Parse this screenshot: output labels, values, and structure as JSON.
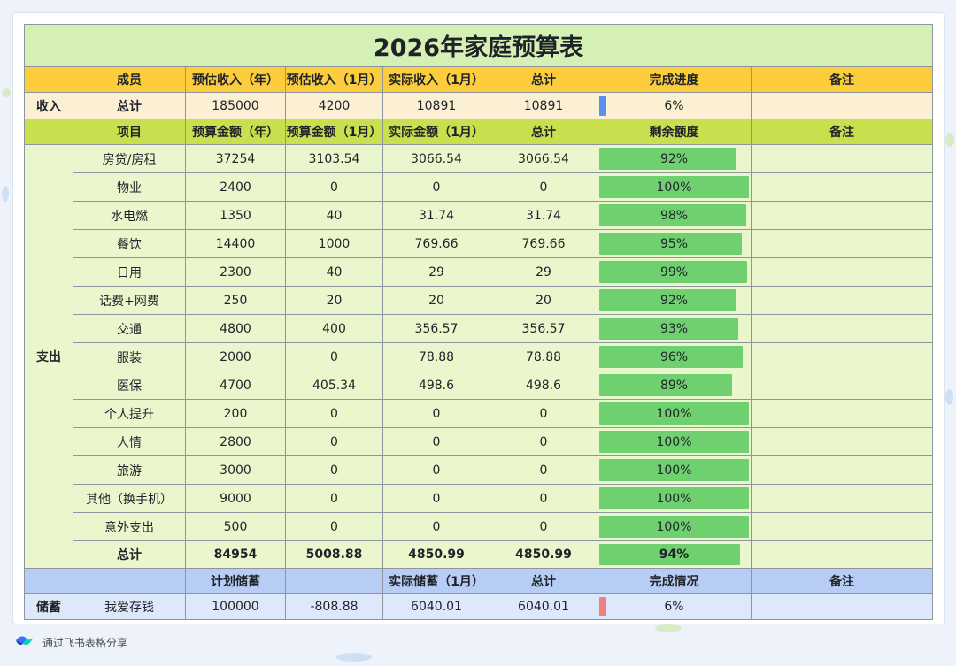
{
  "title": "2026年家庭预算表",
  "income_header": [
    "",
    "成员",
    "预估收入（年）",
    "预估收入（1月）",
    "实际收入（1月）",
    "总计",
    "完成进度",
    "备注"
  ],
  "income_row": {
    "section": "收入",
    "name": "总计",
    "year": "185000",
    "month": "4200",
    "actual": "10891",
    "total": "10891",
    "progress": "6%",
    "progress_value": 6,
    "note": ""
  },
  "expense_header": [
    "",
    "项目",
    "预算金额（年）",
    "预算金额（1月）",
    "实际金额（1月）",
    "总计",
    "剩余额度",
    "备注"
  ],
  "expense_section": "支出",
  "expense_rows": [
    {
      "item": "房贷/房租",
      "year": "37254",
      "month": "3103.54",
      "actual": "3066.54",
      "total": "3066.54",
      "remain": "92%",
      "remain_value": 92
    },
    {
      "item": "物业",
      "year": "2400",
      "month": "0",
      "actual": "0",
      "total": "0",
      "remain": "100%",
      "remain_value": 100
    },
    {
      "item": "水电燃",
      "year": "1350",
      "month": "40",
      "actual": "31.74",
      "total": "31.74",
      "remain": "98%",
      "remain_value": 98
    },
    {
      "item": "餐饮",
      "year": "14400",
      "month": "1000",
      "actual": "769.66",
      "total": "769.66",
      "remain": "95%",
      "remain_value": 95
    },
    {
      "item": "日用",
      "year": "2300",
      "month": "40",
      "actual": "29",
      "total": "29",
      "remain": "99%",
      "remain_value": 99
    },
    {
      "item": "话费+网费",
      "year": "250",
      "month": "20",
      "actual": "20",
      "total": "20",
      "remain": "92%",
      "remain_value": 92
    },
    {
      "item": "交通",
      "year": "4800",
      "month": "400",
      "actual": "356.57",
      "total": "356.57",
      "remain": "93%",
      "remain_value": 93
    },
    {
      "item": "服装",
      "year": "2000",
      "month": "0",
      "actual": "78.88",
      "total": "78.88",
      "remain": "96%",
      "remain_value": 96
    },
    {
      "item": "医保",
      "year": "4700",
      "month": "405.34",
      "actual": "498.6",
      "total": "498.6",
      "remain": "89%",
      "remain_value": 89
    },
    {
      "item": "个人提升",
      "year": "200",
      "month": "0",
      "actual": "0",
      "total": "0",
      "remain": "100%",
      "remain_value": 100
    },
    {
      "item": "人情",
      "year": "2800",
      "month": "0",
      "actual": "0",
      "total": "0",
      "remain": "100%",
      "remain_value": 100
    },
    {
      "item": "旅游",
      "year": "3000",
      "month": "0",
      "actual": "0",
      "total": "0",
      "remain": "100%",
      "remain_value": 100
    },
    {
      "item": "其他（换手机）",
      "year": "9000",
      "month": "0",
      "actual": "0",
      "total": "0",
      "remain": "100%",
      "remain_value": 100
    },
    {
      "item": "意外支出",
      "year": "500",
      "month": "0",
      "actual": "0",
      "total": "0",
      "remain": "100%",
      "remain_value": 100
    }
  ],
  "expense_total": {
    "item": "总计",
    "year": "84954",
    "month": "5008.88",
    "actual": "4850.99",
    "total": "4850.99",
    "remain": "94%",
    "remain_value": 94
  },
  "savings_header": [
    "",
    "",
    "计划储蓄",
    "",
    "实际储蓄（1月）",
    "总计",
    "完成情况",
    "备注"
  ],
  "savings_row": {
    "section": "储蓄",
    "name": "我爱存钱",
    "plan": "100000",
    "diff": "-808.88",
    "actual": "6040.01",
    "total": "6040.01",
    "progress": "6%",
    "progress_value": 6,
    "note": ""
  },
  "footer": {
    "text": "通过飞书表格分享",
    "icon": "feishu-logo-icon"
  },
  "colors": {
    "title_bg": "#d4f0b4",
    "income_header": "#fbcd3c",
    "expense_header": "#c8e04e",
    "savings_header": "#b8cdf6",
    "bar_green": "#6fd06f",
    "bar_blue": "#5b8fef",
    "bar_red": "#f07f7f"
  }
}
